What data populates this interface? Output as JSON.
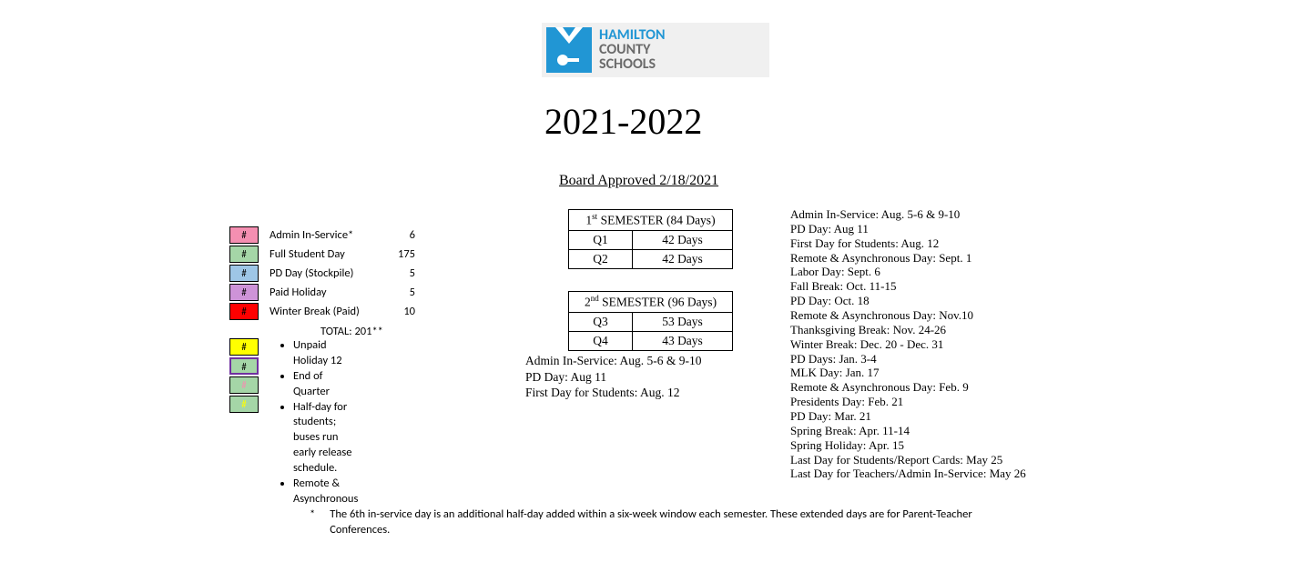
{
  "logo": {
    "line1": "HAMILTON",
    "line2": "COUNTY",
    "line3": "SCHOOLS",
    "bg_color": "#2196d4"
  },
  "year": "2021-2022",
  "board_approved": "Board Approved 2/18/2021",
  "legend": {
    "rows": [
      {
        "glyph": "#",
        "bg": "#f48fb1",
        "label": "Admin In-Service*",
        "value": "6"
      },
      {
        "glyph": "#",
        "bg": "#a5d6a7",
        "label": "Full Student Day",
        "value": "175"
      },
      {
        "glyph": "#",
        "bg": "#9ec6e6",
        "label": "PD Day (Stockpile)",
        "value": "5"
      },
      {
        "glyph": "#",
        "bg": "#ce93d8",
        "label": "Paid Holiday",
        "value": "5"
      },
      {
        "glyph": "#",
        "bg": "#ff0000",
        "label": "Winter Break (Paid)",
        "value": "10"
      }
    ],
    "total_label": "TOTAL:  201**"
  },
  "legend2": {
    "swatches": [
      {
        "glyph": "#",
        "bg": "#ffff00",
        "border": "#000000",
        "color": "#000"
      },
      {
        "glyph": "#",
        "bg": "#a5d6a7",
        "border": "#7030a0",
        "color": "#000",
        "purple": true
      },
      {
        "glyph": "#",
        "bg": "#a5d6a7",
        "border": "#000000",
        "color": "#f48fb1"
      },
      {
        "glyph": "#",
        "bg": "#a5d6a7",
        "border": "#000000",
        "color": "#ffff00"
      }
    ],
    "items": [
      "Unpaid Holiday 12",
      "End of Quarter",
      "Half-day for students; buses run early release schedule.",
      "Remote & Asynchronous"
    ]
  },
  "sem1": {
    "header_a": "1",
    "header_sup": "st",
    "header_b": " SEMESTER (84 Days)",
    "rows": [
      {
        "q": "Q1",
        "d": "42 Days"
      },
      {
        "q": "Q2",
        "d": "42 Days"
      }
    ]
  },
  "sem2": {
    "header_a": "2",
    "header_sup": "nd",
    "header_b": " SEMESTER (96 Days)",
    "rows": [
      {
        "q": "Q3",
        "d": "53 Days"
      },
      {
        "q": "Q4",
        "d": "43 Days"
      }
    ]
  },
  "mid_notes": [
    "Admin In-Service: Aug. 5-6 & 9-10",
    "PD Day: Aug 11",
    "First Day for Students: Aug. 12"
  ],
  "right_list": [
    "Admin In-Service: Aug. 5-6 & 9-10",
    "PD Day: Aug 11",
    "First Day for Students: Aug. 12",
    "Remote & Asynchronous Day: Sept. 1",
    "Labor Day: Sept. 6",
    "Fall Break: Oct. 11-15",
    "PD Day: Oct. 18",
    "Remote & Asynchronous Day: Nov.10",
    "Thanksgiving Break: Nov. 24-26",
    "Winter Break: Dec. 20 - Dec. 31",
    "PD Days: Jan. 3-4",
    "MLK Day: Jan. 17",
    "Remote & Asynchronous Day: Feb. 9",
    "Presidents Day: Feb. 21",
    "PD Day: Mar. 21",
    "Spring Break: Apr. 11-14",
    "Spring Holiday:  Apr. 15",
    "Last Day for Students/Report Cards: May 25",
    "Last Day for Teachers/Admin In-Service: May 26"
  ],
  "footnote": {
    "star": "*",
    "text": "The 6th in-service day is an additional half-day added within a six-week window each semester. These extended days are for Parent-Teacher Conferences."
  }
}
